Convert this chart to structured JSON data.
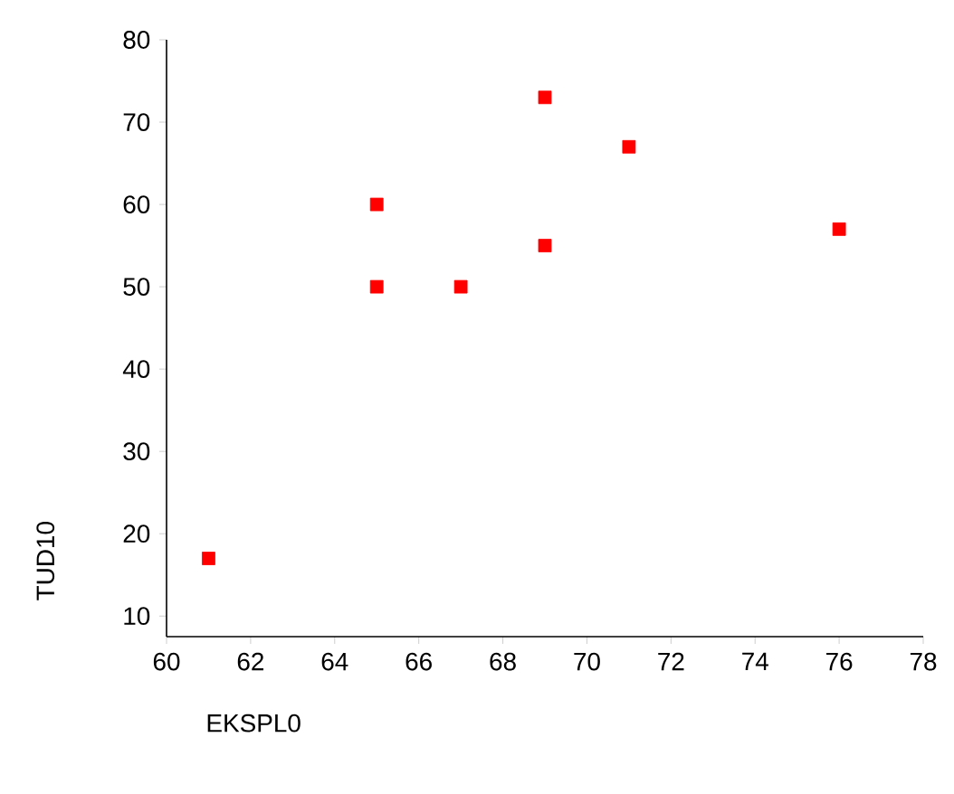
{
  "chart_data": {
    "type": "scatter",
    "xlabel": "EKSPL0",
    "ylabel": "TUD10",
    "x": [
      61,
      65,
      65,
      67,
      69,
      69,
      71,
      76
    ],
    "values": [
      17,
      60,
      50,
      50,
      73,
      55,
      67,
      57
    ],
    "color": "#ff0000",
    "marker": "square",
    "xlim": [
      60,
      78
    ],
    "ylim": [
      7.5,
      80
    ],
    "xticks": [
      60,
      62,
      64,
      66,
      68,
      70,
      72,
      74,
      76,
      78
    ],
    "yticks": [
      10,
      20,
      30,
      40,
      50,
      60,
      70,
      80
    ],
    "grid": false
  }
}
